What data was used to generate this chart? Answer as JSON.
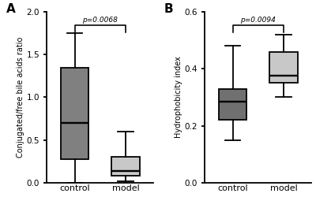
{
  "panel_A": {
    "title": "A",
    "ylabel": "Conjugated/free bile acids ratio",
    "xlabel_labels": [
      "control",
      "model"
    ],
    "pvalue": "p=0.0068",
    "ylim": [
      0,
      2.0
    ],
    "yticks": [
      0.0,
      0.5,
      1.0,
      1.5,
      2.0
    ],
    "control": {
      "whisker_low": 0.0,
      "q1": 0.27,
      "median": 0.7,
      "q3": 1.35,
      "whisker_high": 1.75,
      "color": "#808080"
    },
    "model": {
      "whisker_low": 0.02,
      "q1": 0.08,
      "median": 0.14,
      "q3": 0.3,
      "whisker_high": 0.6,
      "color": "#c8c8c8"
    }
  },
  "panel_B": {
    "title": "B",
    "ylabel": "Hydrophobicity index",
    "xlabel_labels": [
      "control",
      "model"
    ],
    "pvalue": "p=0.0094",
    "ylim": [
      0.0,
      0.6
    ],
    "yticks": [
      0.0,
      0.2,
      0.4,
      0.6
    ],
    "control": {
      "whisker_low": 0.15,
      "q1": 0.22,
      "median": 0.285,
      "q3": 0.33,
      "whisker_high": 0.48,
      "color": "#707070"
    },
    "model": {
      "whisker_low": 0.3,
      "q1": 0.35,
      "median": 0.375,
      "q3": 0.46,
      "whisker_high": 0.52,
      "color": "#c8c8c8"
    }
  },
  "background_color": "#ffffff",
  "box_width": 0.55,
  "linewidth": 1.3
}
